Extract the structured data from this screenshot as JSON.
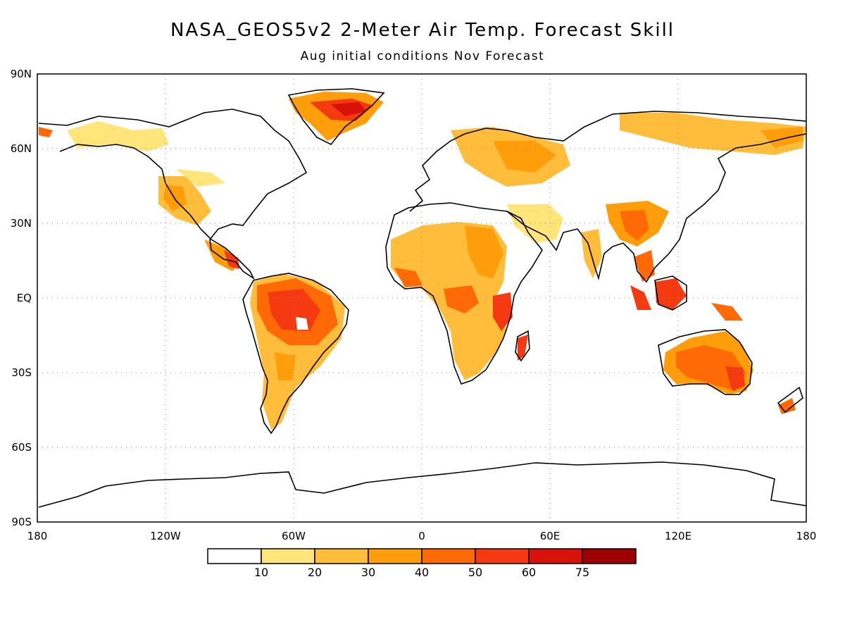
{
  "title": "NASA_GEOS5v2 2-Meter Air Temp. Forecast Skill",
  "subtitle": "Aug initial conditions  Nov Forecast",
  "lat_labels": [
    "90N",
    "60N",
    "30N",
    "EQ",
    "30S",
    "60S",
    "90S"
  ],
  "lon_labels": [
    "180",
    "120W",
    "60W",
    "0",
    "60E",
    "120E",
    "180"
  ],
  "colorbar": {
    "thresholds": [
      "10",
      "20",
      "30",
      "40",
      "50",
      "60",
      "75"
    ],
    "colors": [
      "#ffffff",
      "#ffe57a",
      "#ffbd3b",
      "#ff9e0a",
      "#ff6a06",
      "#f53a12",
      "#d8120b",
      "#9c0000"
    ]
  },
  "colors": {
    "coast": "#000000",
    "grid": "#8a8a8a"
  }
}
